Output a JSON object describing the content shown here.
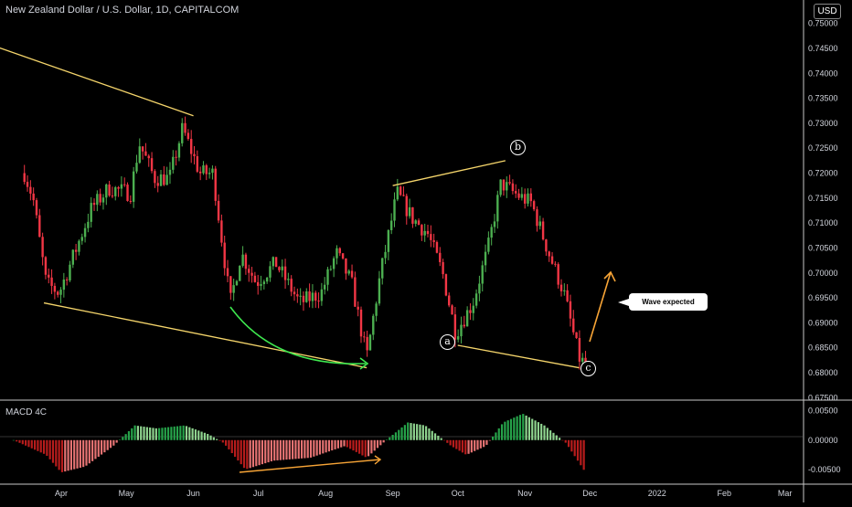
{
  "header": {
    "title": "New Zealand Dollar / U.S. Dollar, 1D, CAPITALCOM",
    "currency": "USD"
  },
  "macd_label": "MACD 4C",
  "annotations": {
    "wave_expected": "Wave expected",
    "wave_a": "a",
    "wave_b": "b",
    "wave_c": "c"
  },
  "colors": {
    "background": "#000000",
    "up": "#4caf50",
    "down": "#f23645",
    "trendline": "#f5d56b",
    "green_arrow": "#3ee84f",
    "orange_arrow": "#f7a436",
    "macd_up_strong": "#26a34a",
    "macd_up_weak": "#8fd48f",
    "macd_down_strong": "#b71c1c",
    "macd_down_weak": "#e57373"
  },
  "chart_data": [
    {
      "type": "candlestick",
      "symbol": "NZDUSD",
      "interval": "1D",
      "source": "CAPITALCOM",
      "ylim": [
        0.6725,
        0.7525
      ],
      "y_ticks": [
        "0.75000",
        "0.74500",
        "0.74000",
        "0.73500",
        "0.73000",
        "0.72500",
        "0.72000",
        "0.71500",
        "0.71000",
        "0.70500",
        "0.70000",
        "0.69500",
        "0.69000",
        "0.68500",
        "0.68000",
        "0.67500"
      ],
      "x_ticks": [
        "Apr",
        "May",
        "Jun",
        "Jul",
        "Aug",
        "Sep",
        "Oct",
        "Nov",
        "Dec",
        "2022",
        "Feb",
        "Mar"
      ],
      "close_path": [
        {
          "date": "2021-03-15",
          "value": 0.72
        },
        {
          "date": "2021-03-19",
          "value": 0.715
        },
        {
          "date": "2021-03-25",
          "value": 0.698
        },
        {
          "date": "2021-03-31",
          "value": 0.696
        },
        {
          "date": "2021-04-08",
          "value": 0.705
        },
        {
          "date": "2021-04-15",
          "value": 0.713
        },
        {
          "date": "2021-04-23",
          "value": 0.717
        },
        {
          "date": "2021-05-03",
          "value": 0.716
        },
        {
          "date": "2021-05-07",
          "value": 0.726
        },
        {
          "date": "2021-05-14",
          "value": 0.719
        },
        {
          "date": "2021-05-21",
          "value": 0.719
        },
        {
          "date": "2021-05-27",
          "value": 0.729
        },
        {
          "date": "2021-06-04",
          "value": 0.72
        },
        {
          "date": "2021-06-10",
          "value": 0.72
        },
        {
          "date": "2021-06-18",
          "value": 0.694
        },
        {
          "date": "2021-06-23",
          "value": 0.704
        },
        {
          "date": "2021-06-30",
          "value": 0.698
        },
        {
          "date": "2021-07-09",
          "value": 0.702
        },
        {
          "date": "2021-07-20",
          "value": 0.694
        },
        {
          "date": "2021-07-30",
          "value": 0.696
        },
        {
          "date": "2021-08-06",
          "value": 0.704
        },
        {
          "date": "2021-08-13",
          "value": 0.698
        },
        {
          "date": "2021-08-20",
          "value": 0.683
        },
        {
          "date": "2021-08-26",
          "value": 0.699
        },
        {
          "date": "2021-09-03",
          "value": 0.716
        },
        {
          "date": "2021-09-10",
          "value": 0.711
        },
        {
          "date": "2021-09-17",
          "value": 0.708
        },
        {
          "date": "2021-09-24",
          "value": 0.7
        },
        {
          "date": "2021-09-30",
          "value": 0.688
        },
        {
          "date": "2021-10-08",
          "value": 0.694
        },
        {
          "date": "2021-10-15",
          "value": 0.705
        },
        {
          "date": "2021-10-21",
          "value": 0.718
        },
        {
          "date": "2021-10-27",
          "value": 0.716
        },
        {
          "date": "2021-11-04",
          "value": 0.714
        },
        {
          "date": "2021-11-12",
          "value": 0.704
        },
        {
          "date": "2021-11-19",
          "value": 0.696
        },
        {
          "date": "2021-11-26",
          "value": 0.683
        },
        {
          "date": "2021-11-29",
          "value": 0.6815
        }
      ],
      "trendlines": [
        {
          "from": {
            "date": "2021-03-01",
            "value": 0.7455
          },
          "to": {
            "date": "2021-06-01",
            "value": 0.7315
          }
        },
        {
          "from": {
            "date": "2021-03-24",
            "value": 0.694
          },
          "to": {
            "date": "2021-08-20",
            "value": 0.681
          }
        },
        {
          "from": {
            "date": "2021-09-01",
            "value": 0.7175
          },
          "to": {
            "date": "2021-10-23",
            "value": 0.7225
          }
        },
        {
          "from": {
            "date": "2021-10-01",
            "value": 0.6855
          },
          "to": {
            "date": "2021-11-26",
            "value": 0.681
          }
        }
      ],
      "wave_points": [
        {
          "label": "a",
          "date": "2021-09-30",
          "value": 0.683
        },
        {
          "label": "b",
          "date": "2021-10-24",
          "value": 0.725
        },
        {
          "label": "c",
          "date": "2021-11-27",
          "value": 0.678
        }
      ]
    },
    {
      "type": "histogram",
      "name": "MACD 4C",
      "ylim": [
        -0.0075,
        0.0065
      ],
      "y_ticks": [
        "0.00500",
        "0.00000",
        "-0.00500"
      ],
      "values_path": [
        {
          "date": "2021-03-10",
          "value": 0.0
        },
        {
          "date": "2021-03-25",
          "value": -0.0025
        },
        {
          "date": "2021-04-01",
          "value": -0.0055
        },
        {
          "date": "2021-04-12",
          "value": -0.0045
        },
        {
          "date": "2021-04-25",
          "value": -0.001
        },
        {
          "date": "2021-05-05",
          "value": 0.0025
        },
        {
          "date": "2021-05-15",
          "value": 0.002
        },
        {
          "date": "2021-05-28",
          "value": 0.0025
        },
        {
          "date": "2021-06-08",
          "value": 0.001
        },
        {
          "date": "2021-06-15",
          "value": -0.0005
        },
        {
          "date": "2021-06-25",
          "value": -0.005
        },
        {
          "date": "2021-07-08",
          "value": -0.0035
        },
        {
          "date": "2021-07-25",
          "value": -0.003
        },
        {
          "date": "2021-08-10",
          "value": -0.001
        },
        {
          "date": "2021-08-20",
          "value": -0.003
        },
        {
          "date": "2021-08-29",
          "value": 0.0
        },
        {
          "date": "2021-09-08",
          "value": 0.003
        },
        {
          "date": "2021-09-16",
          "value": 0.0025
        },
        {
          "date": "2021-09-28",
          "value": -0.001
        },
        {
          "date": "2021-10-05",
          "value": -0.0025
        },
        {
          "date": "2021-10-14",
          "value": -0.001
        },
        {
          "date": "2021-10-22",
          "value": 0.003
        },
        {
          "date": "2021-10-31",
          "value": 0.0045
        },
        {
          "date": "2021-11-10",
          "value": 0.0025
        },
        {
          "date": "2021-11-20",
          "value": -0.0005
        },
        {
          "date": "2021-11-29",
          "value": -0.0055
        }
      ]
    }
  ]
}
